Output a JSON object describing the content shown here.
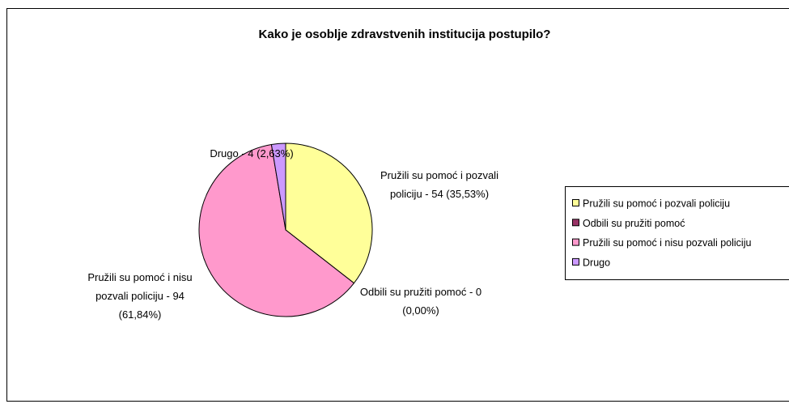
{
  "chart_data": {
    "type": "pie",
    "title": "Kako je osoblje zdravstvenih institucija postupilo?",
    "categories": [
      "Pružili su pomoć i pozvali policiju",
      "Odbili su pružiti pomoć",
      "Pružili su pomoć i nisu pozvali policiju",
      "Drugo"
    ],
    "values": [
      54,
      0,
      94,
      4
    ],
    "value_labels": [
      [
        "Pružili su pomoć i pozvali",
        "policiju - 54 (35,53%)"
      ],
      [
        "Odbili su pružiti pomoć - 0",
        "(0,00%)"
      ],
      [
        "Pružili su pomoć i nisu",
        "pozvali policiju - 94",
        "(61,84%)"
      ],
      [
        "Drugo - 4 (2,63%)"
      ]
    ],
    "colors": [
      "#FFFF99",
      "#993366",
      "#FF99CC",
      "#CC99FF"
    ],
    "legend": "right"
  }
}
